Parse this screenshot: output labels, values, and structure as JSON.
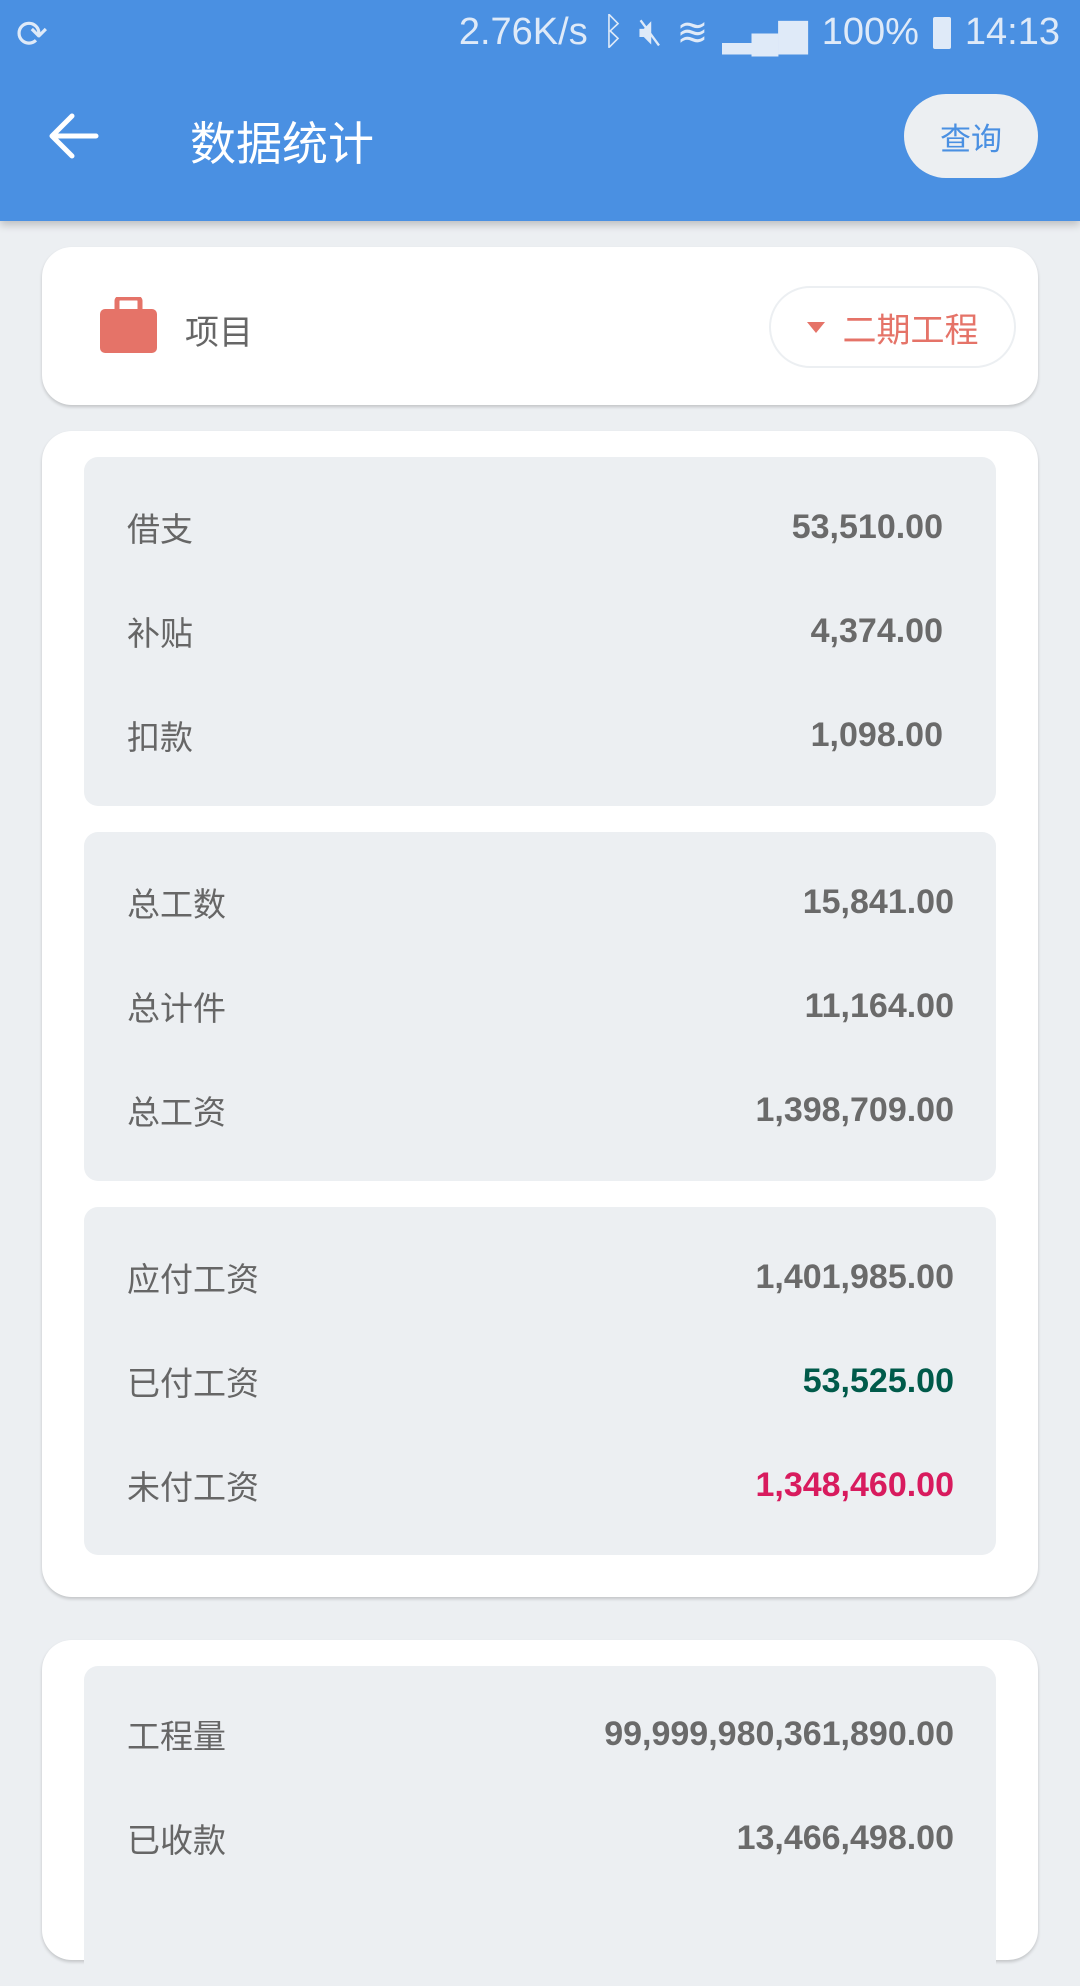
{
  "status_bar": {
    "net_speed": "2.76K/s",
    "battery": "100%",
    "time": "14:13",
    "icons": [
      "sync-icon",
      "bluetooth-icon",
      "mute-icon",
      "wifi-icon",
      "signal-icon",
      "battery-charging-icon"
    ]
  },
  "header": {
    "title": "数据统计",
    "query_label": "查询"
  },
  "project": {
    "label": "项目",
    "selected": "二期工程",
    "icon": "briefcase-icon"
  },
  "colors": {
    "accent": "#4a90e2",
    "project": "#e57368",
    "paid": "#005a4a",
    "unpaid": "#d81b5e"
  },
  "groups": [
    [
      {
        "label": "借支",
        "value": "53,510.00"
      },
      {
        "label": "补贴",
        "value": "4,374.00"
      },
      {
        "label": "扣款",
        "value": "1,098.00"
      }
    ],
    [
      {
        "label": "总工数",
        "value": "15,841.00"
      },
      {
        "label": "总计件",
        "value": "11,164.00"
      },
      {
        "label": "总工资",
        "value": "1,398,709.00"
      }
    ],
    [
      {
        "label": "应付工资",
        "value": "1,401,985.00"
      },
      {
        "label": "已付工资",
        "value": "53,525.00"
      },
      {
        "label": "未付工资",
        "value": "1,348,460.00"
      }
    ],
    [
      {
        "label": "工程量",
        "value": "99,999,980,361,890.00"
      },
      {
        "label": "已收款",
        "value": "13,466,498.00"
      }
    ]
  ]
}
